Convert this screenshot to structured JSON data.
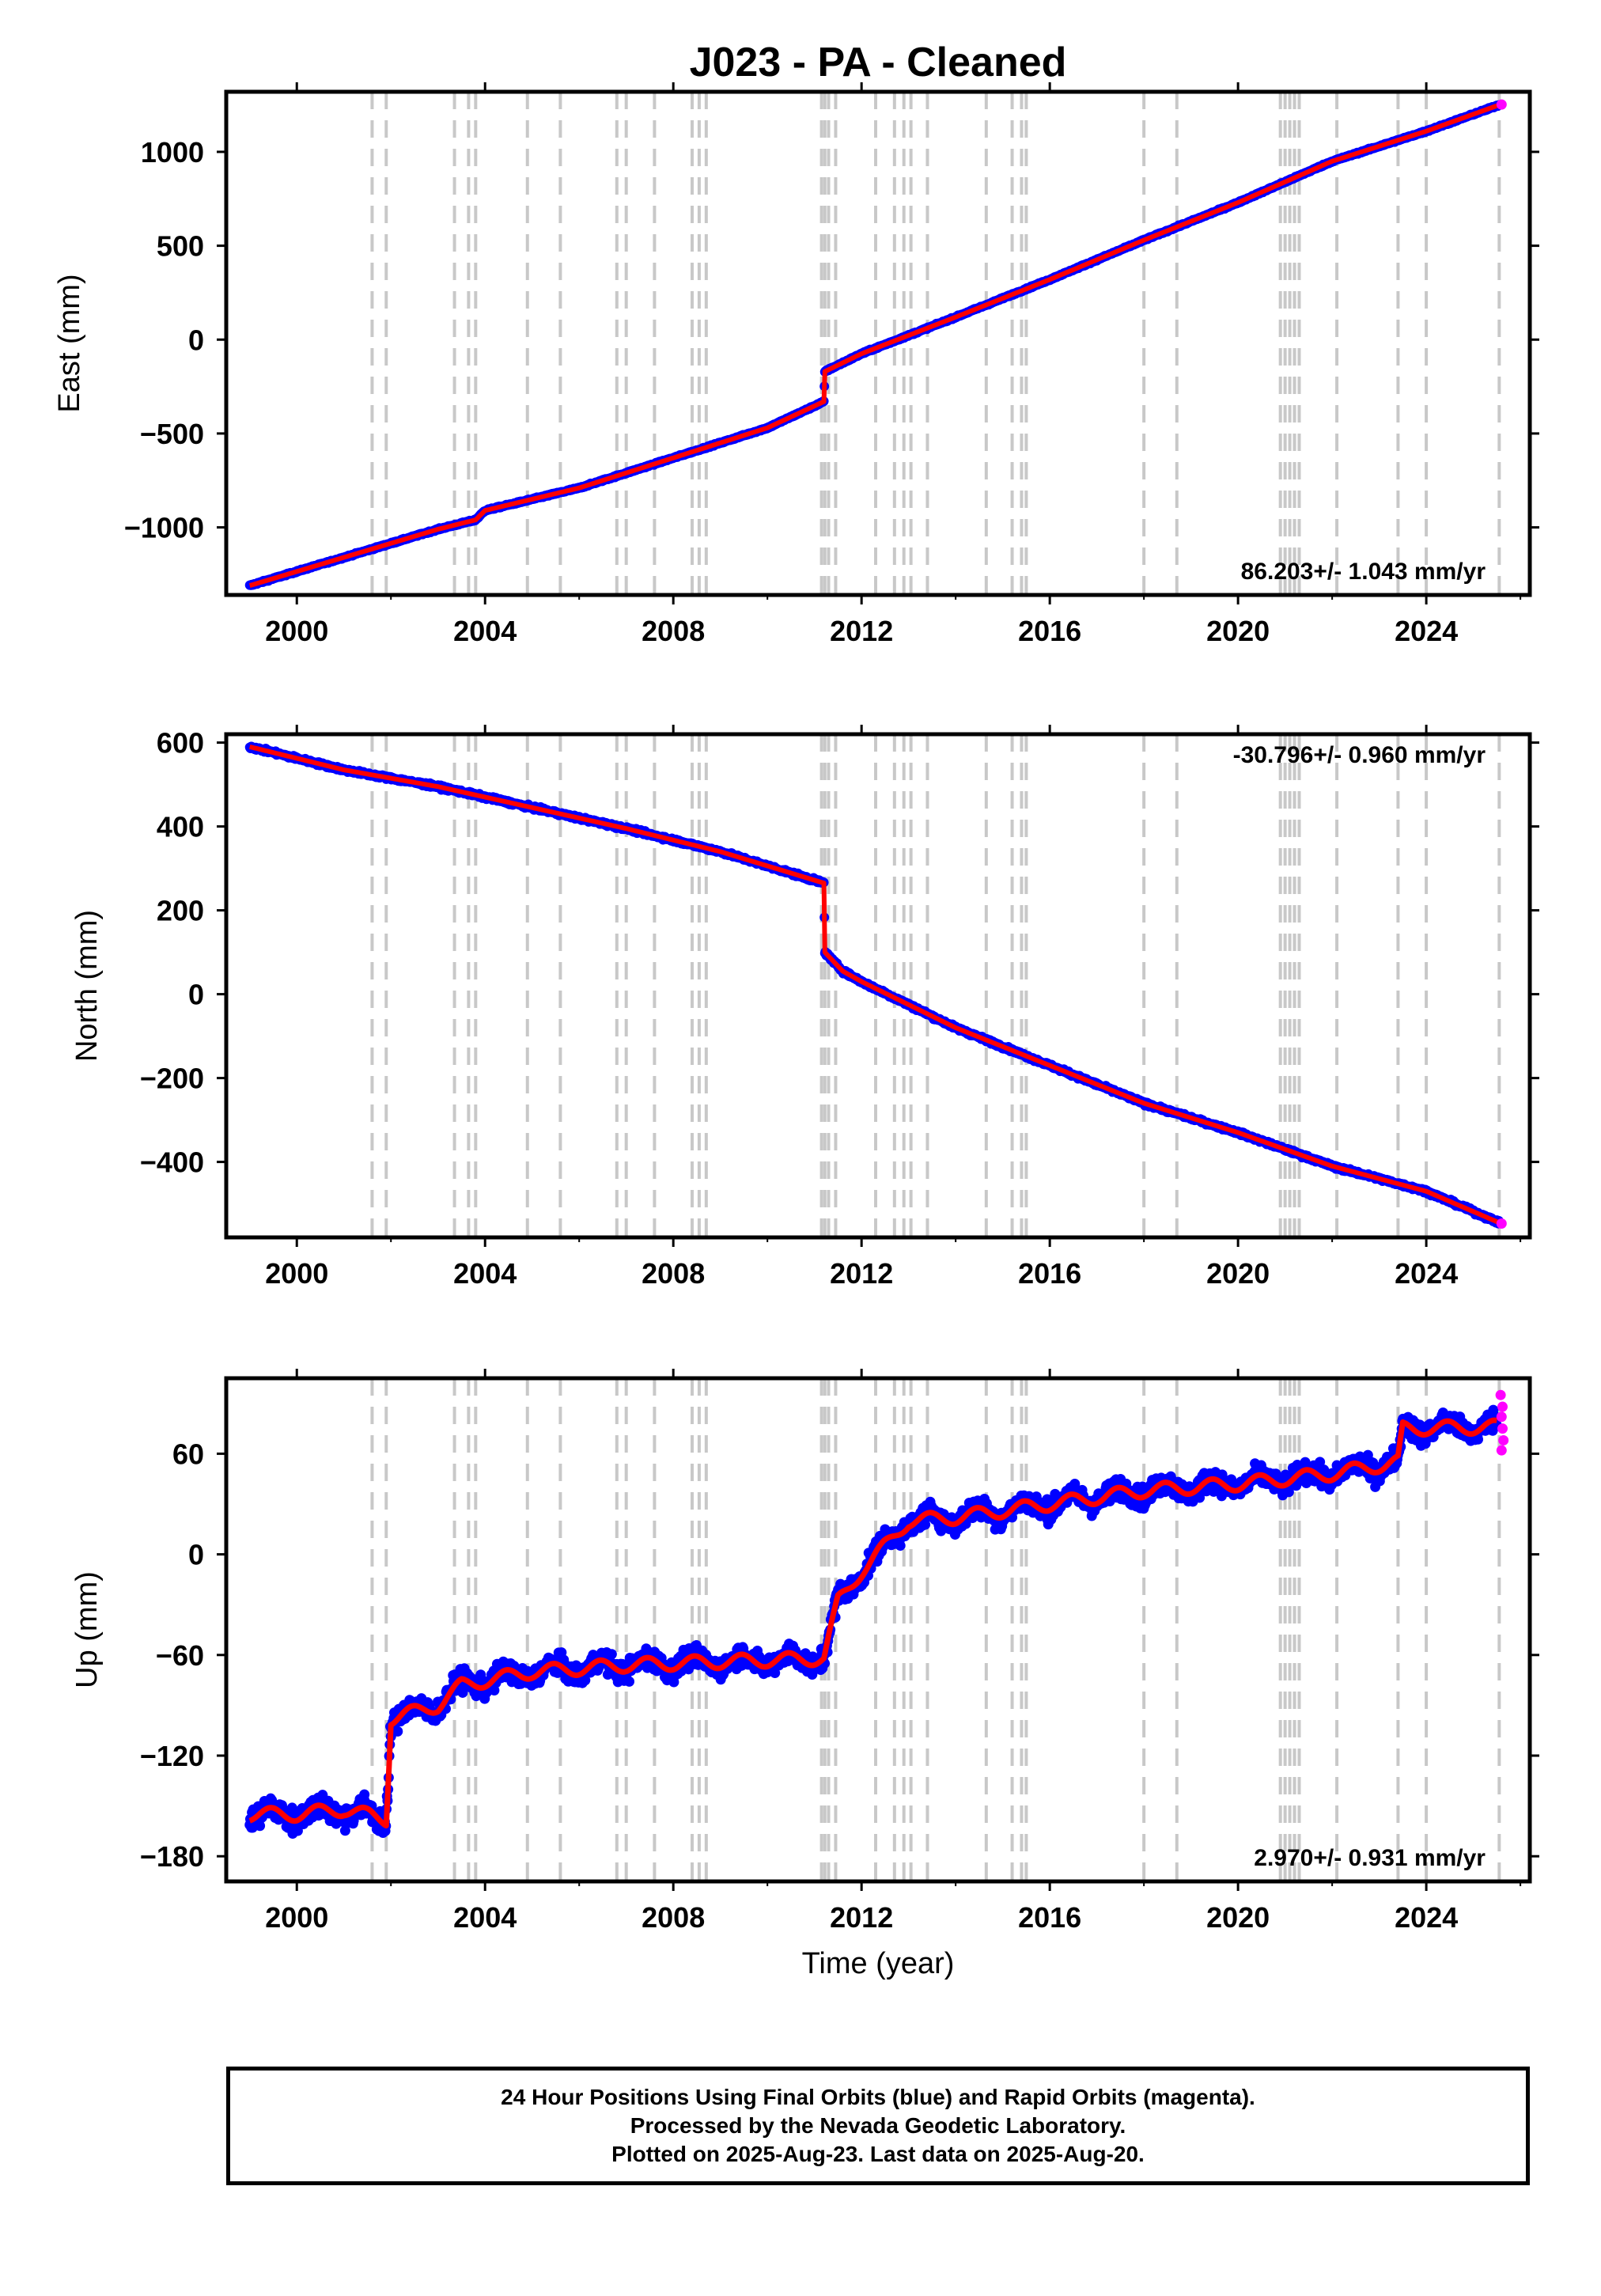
{
  "title": "J023  - PA - Cleaned",
  "colors": {
    "final_orbits": "#0000ff",
    "rapid_orbits": "#ff00ff",
    "model": "#ff0000",
    "event_lines": "#c8c8c8",
    "axes": "#000000"
  },
  "footer": {
    "line1": "24 Hour Positions Using Final Orbits (blue) and Rapid Orbits (magenta).",
    "line2": "Processed by the Nevada Geodetic Laboratory.",
    "line3": "Plotted on 2025-Aug-23. Last data on 2025-Aug-20."
  },
  "chart_data": [
    {
      "id": "east",
      "type": "scatter",
      "ylabel": "East (mm)",
      "xlabel": "",
      "xlim": [
        1998.5,
        2026.2
      ],
      "ylim": [
        -1360,
        1320
      ],
      "xticks": [
        2000,
        2004,
        2008,
        2012,
        2016,
        2020,
        2024
      ],
      "xtick_labels": [
        "2000",
        "2004",
        "2008",
        "2012",
        "2016",
        "2020",
        "2024"
      ],
      "yticks": [
        -1000,
        -500,
        0,
        500,
        1000
      ],
      "ytick_labels": [
        "−1000",
        "−500",
        "0",
        "500",
        "1000"
      ],
      "rate_label": "86.203+/- 1.043 mm/yr",
      "rate_position": "bottom-right",
      "series": [
        {
          "name": "Final Orbits",
          "color": "#0000ff",
          "x": [
            1999.0,
            2001.0,
            2003.0,
            2003.8,
            2004.0,
            2006.0,
            2008.0,
            2010.0,
            2011.2,
            2011.22,
            2012.0,
            2014.0,
            2016.0,
            2018.0,
            2020.0,
            2022.0,
            2024.0,
            2025.55
          ],
          "y": [
            -1310,
            -1160,
            -1010,
            -960,
            -910,
            -790,
            -630,
            -470,
            -330,
            -170,
            -75,
            120,
            320,
            530,
            730,
            950,
            1110,
            1250
          ]
        },
        {
          "name": "Rapid Orbits",
          "color": "#ff00ff",
          "x": [
            2025.6
          ],
          "y": [
            1252
          ]
        }
      ]
    },
    {
      "id": "north",
      "type": "scatter",
      "ylabel": "North (mm)",
      "xlabel": "",
      "xlim": [
        1998.5,
        2026.2
      ],
      "ylim": [
        -580,
        620
      ],
      "xticks": [
        2000,
        2004,
        2008,
        2012,
        2016,
        2020,
        2024
      ],
      "xtick_labels": [
        "2000",
        "2004",
        "2008",
        "2012",
        "2016",
        "2020",
        "2024"
      ],
      "yticks": [
        -400,
        -200,
        0,
        200,
        400,
        600
      ],
      "ytick_labels": [
        "−400",
        "−200",
        "0",
        "200",
        "400",
        "600"
      ],
      "rate_label": "-30.796+/- 0.960 mm/yr",
      "rate_position": "top-right",
      "series": [
        {
          "name": "Final Orbits",
          "color": "#0000ff",
          "x": [
            1999.0,
            2001.0,
            2003.0,
            2005.0,
            2007.0,
            2009.0,
            2011.2,
            2011.22,
            2011.6,
            2012.0,
            2014.0,
            2016.0,
            2018.0,
            2020.0,
            2022.0,
            2024.0,
            2025.55
          ],
          "y": [
            590,
            535,
            495,
            445,
            395,
            340,
            265,
            100,
            55,
            30,
            -80,
            -170,
            -260,
            -330,
            -410,
            -470,
            -545
          ]
        },
        {
          "name": "Rapid Orbits",
          "color": "#ff00ff",
          "x": [
            2025.6
          ],
          "y": [
            -547
          ]
        }
      ]
    },
    {
      "id": "up",
      "type": "scatter",
      "ylabel": "Up (mm)",
      "xlabel": "Time (year)",
      "xlim": [
        1998.5,
        2026.2
      ],
      "ylim": [
        -195,
        105
      ],
      "xticks": [
        2000,
        2004,
        2008,
        2012,
        2016,
        2020,
        2024
      ],
      "xtick_labels": [
        "2000",
        "2004",
        "2008",
        "2012",
        "2016",
        "2020",
        "2024"
      ],
      "yticks": [
        -180,
        -120,
        -60,
        0,
        60
      ],
      "ytick_labels": [
        "−180",
        "−120",
        "−60",
        "0",
        "60"
      ],
      "rate_label": "2.970+/- 0.931 mm/yr",
      "rate_position": "bottom-right",
      "series": [
        {
          "name": "Final Orbits",
          "color": "#0000ff",
          "x": [
            1999.0,
            2000.0,
            2001.0,
            2001.9,
            2002.0,
            2003.0,
            2003.5,
            2005.0,
            2007.0,
            2009.0,
            2011.2,
            2011.5,
            2012.0,
            2013.0,
            2014.0,
            2016.0,
            2018.0,
            2020.0,
            2022.0,
            2023.4,
            2023.5,
            2025.5
          ],
          "y": [
            -155,
            -155,
            -152,
            -158,
            -98,
            -90,
            -78,
            -70,
            -66,
            -64,
            -62,
            -28,
            -10,
            20,
            22,
            30,
            38,
            42,
            48,
            55,
            75,
            76
          ]
        },
        {
          "name": "Rapid Orbits",
          "color": "#ff00ff",
          "x": [
            2025.58,
            2025.6,
            2025.62,
            2025.64,
            2025.6,
            2025.62
          ],
          "y": [
            95,
            82,
            75,
            68,
            62,
            88
          ]
        }
      ]
    }
  ],
  "event_lines": [
    2001.6,
    2001.9,
    2003.35,
    2003.65,
    2003.8,
    2004.9,
    2005.6,
    2006.8,
    2007.0,
    2007.6,
    2008.4,
    2008.55,
    2008.7,
    2011.15,
    2011.22,
    2011.3,
    2011.45,
    2012.3,
    2012.7,
    2012.9,
    2013.05,
    2013.4,
    2014.65,
    2015.2,
    2015.4,
    2015.5,
    2018.0,
    2018.7,
    2020.9,
    2021.0,
    2021.1,
    2021.2,
    2021.3,
    2022.1,
    2023.4,
    2024.0,
    2025.55
  ]
}
